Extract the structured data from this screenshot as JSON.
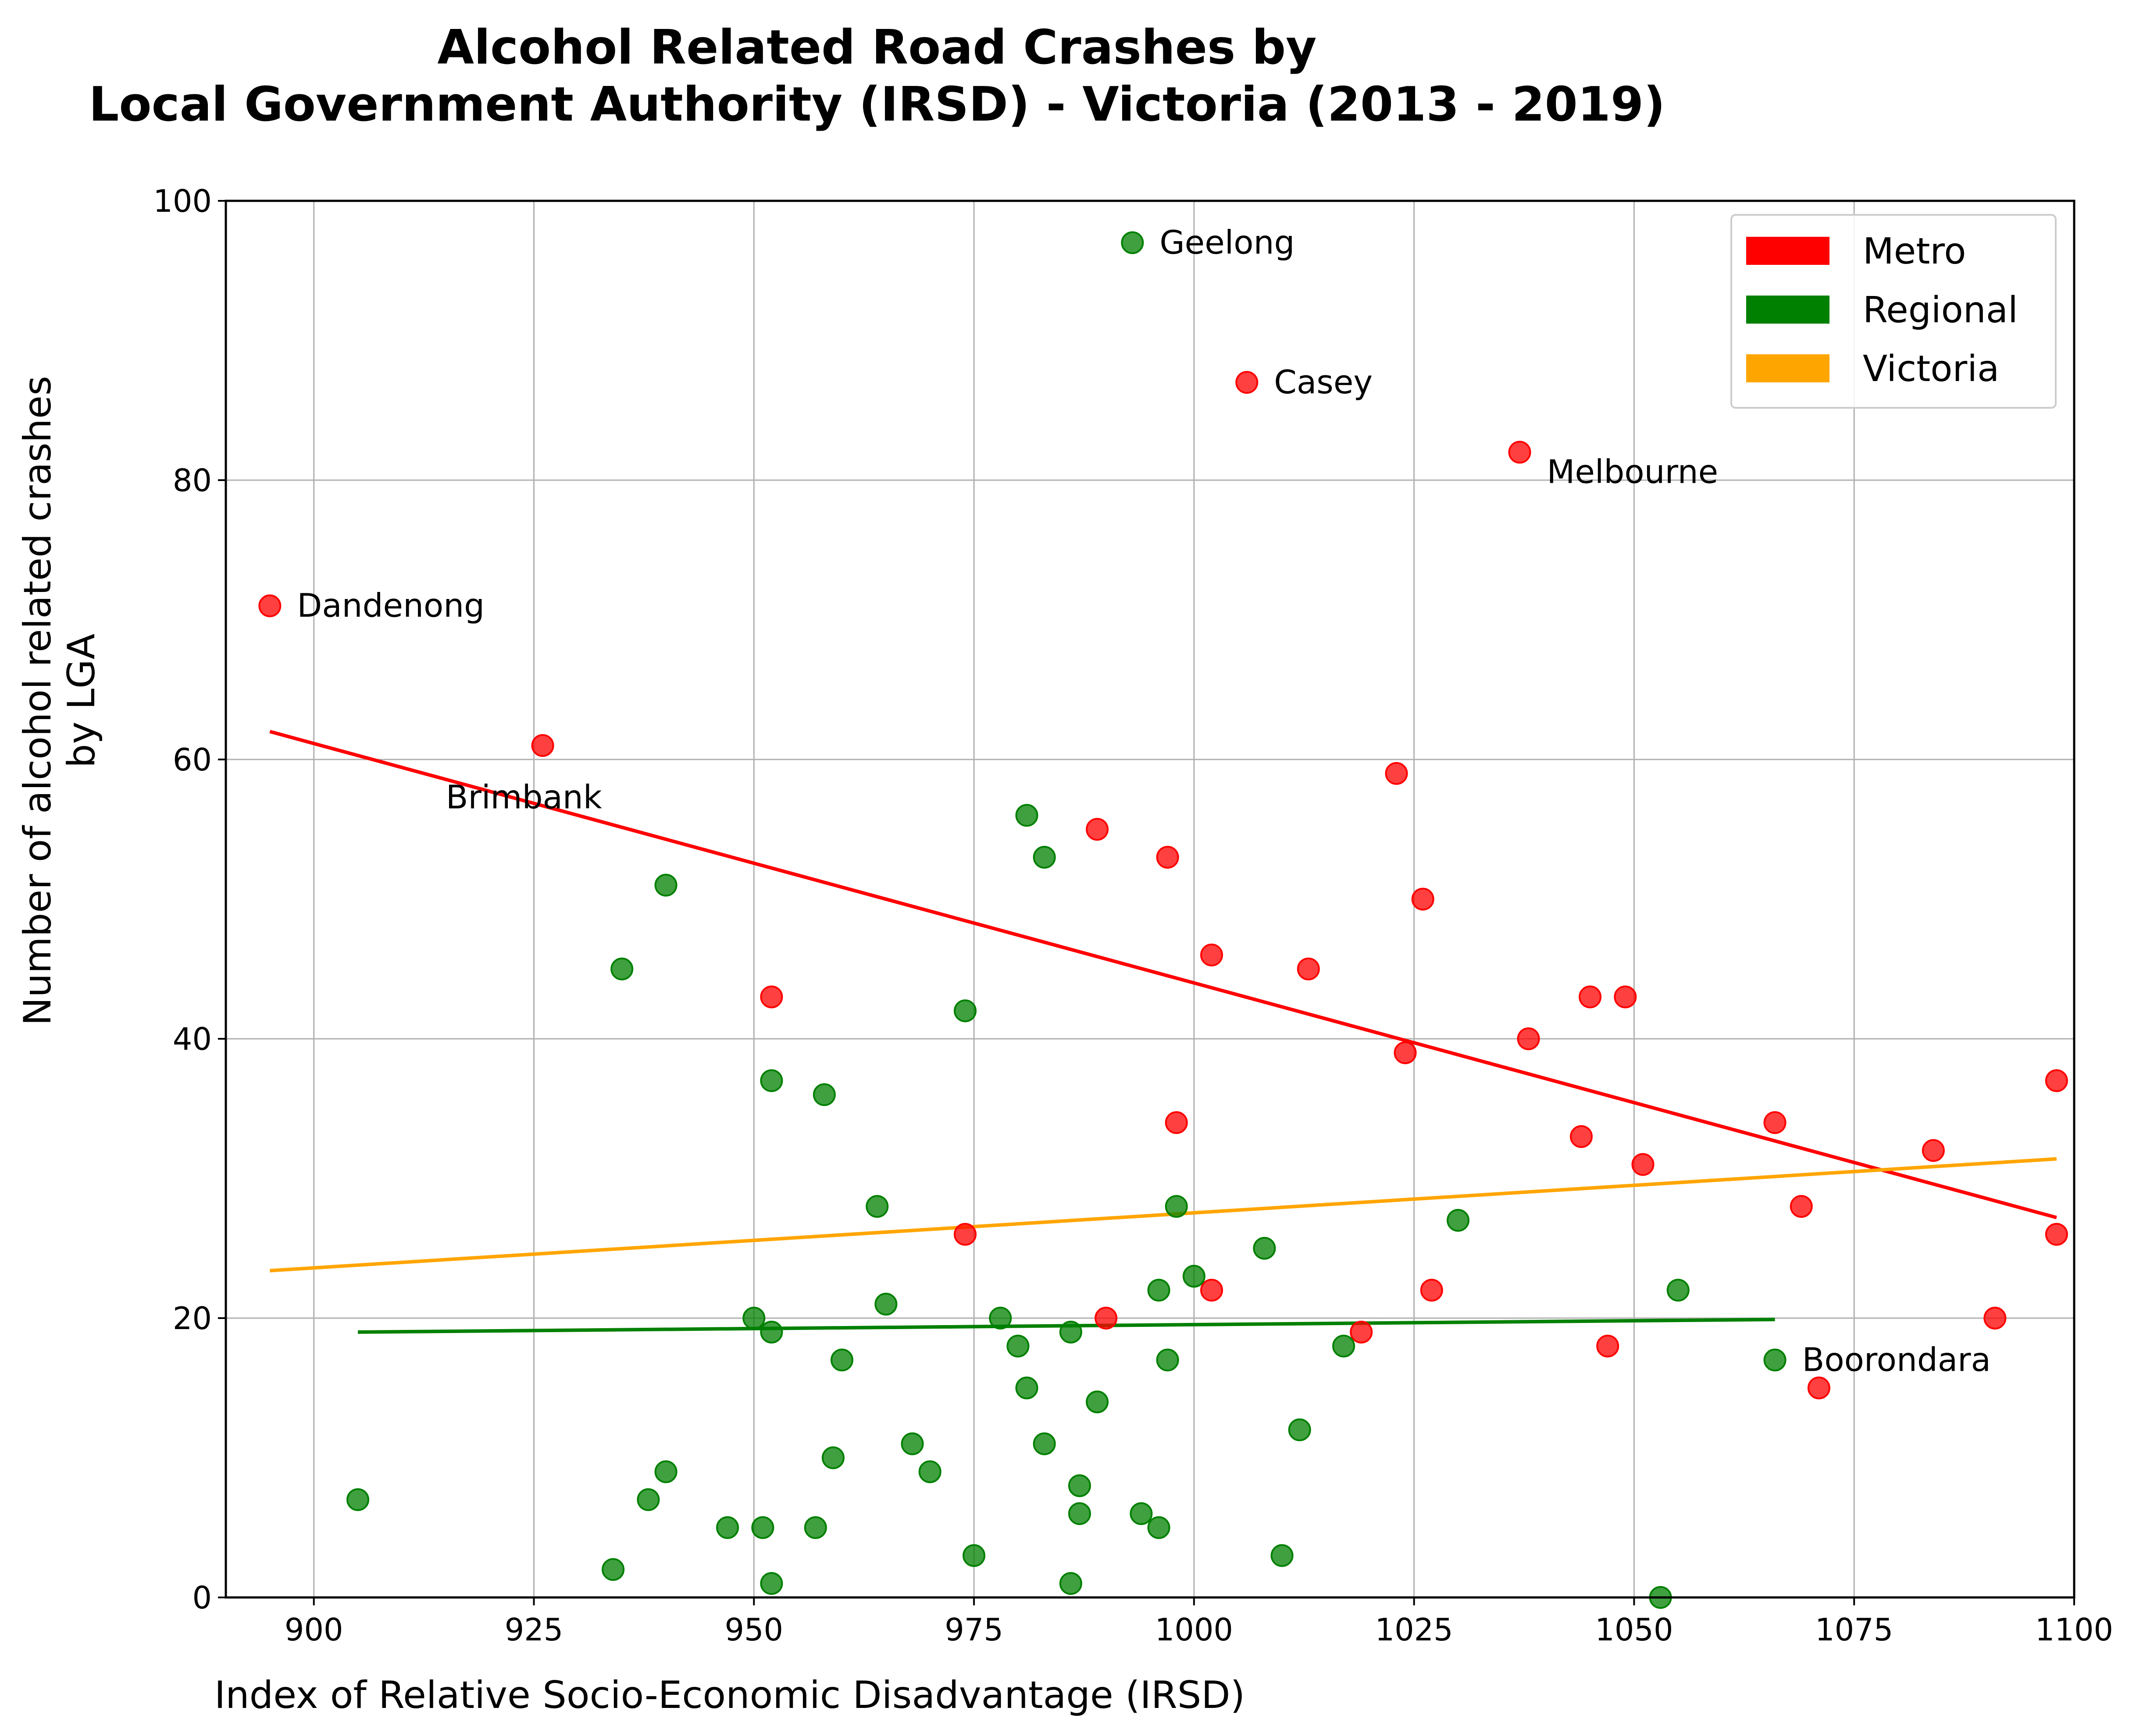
{
  "chart_data": {
    "type": "scatter",
    "title": [
      "Alcohol Related Road Crashes by",
      "Local Government Authority (IRSD) - Victoria (2013 - 2019)"
    ],
    "xlabel": "Index of Relative Socio-Economic Disadvantage (IRSD)",
    "ylabel": [
      "Number of alcohol related crashes",
      "by LGA"
    ],
    "xlim": [
      890,
      1100
    ],
    "ylim": [
      0,
      100
    ],
    "xticks": [
      900,
      925,
      950,
      975,
      1000,
      1025,
      1050,
      1075,
      1100
    ],
    "yticks": [
      0,
      20,
      40,
      60,
      80,
      100
    ],
    "grid": true,
    "legend_position": "top-right",
    "series": [
      {
        "name": "Metro",
        "color": "#ff0000",
        "points": [
          [
            895,
            71
          ],
          [
            926,
            61
          ],
          [
            952,
            43
          ],
          [
            974,
            26
          ],
          [
            989,
            55
          ],
          [
            990,
            20
          ],
          [
            997,
            53
          ],
          [
            998,
            34
          ],
          [
            1002,
            46
          ],
          [
            1002,
            22
          ],
          [
            1006,
            87
          ],
          [
            1013,
            45
          ],
          [
            1019,
            19
          ],
          [
            1023,
            59
          ],
          [
            1024,
            39
          ],
          [
            1026,
            50
          ],
          [
            1027,
            22
          ],
          [
            1037,
            82
          ],
          [
            1038,
            40
          ],
          [
            1044,
            33
          ],
          [
            1045,
            43
          ],
          [
            1047,
            18
          ],
          [
            1049,
            43
          ],
          [
            1051,
            31
          ],
          [
            1066,
            34
          ],
          [
            1069,
            28
          ],
          [
            1071,
            15
          ],
          [
            1084,
            32
          ],
          [
            1091,
            20
          ],
          [
            1098,
            37
          ],
          [
            1098,
            26
          ]
        ]
      },
      {
        "name": "Regional",
        "color": "#008000",
        "points": [
          [
            905,
            7
          ],
          [
            934,
            2
          ],
          [
            935,
            45
          ],
          [
            938,
            7
          ],
          [
            940,
            51
          ],
          [
            940,
            9
          ],
          [
            947,
            5
          ],
          [
            950,
            20
          ],
          [
            951,
            5
          ],
          [
            952,
            37
          ],
          [
            952,
            19
          ],
          [
            952,
            1
          ],
          [
            957,
            5
          ],
          [
            958,
            36
          ],
          [
            959,
            10
          ],
          [
            960,
            17
          ],
          [
            964,
            28
          ],
          [
            965,
            21
          ],
          [
            968,
            11
          ],
          [
            970,
            9
          ],
          [
            974,
            42
          ],
          [
            975,
            3
          ],
          [
            978,
            20
          ],
          [
            980,
            18
          ],
          [
            981,
            56
          ],
          [
            981,
            15
          ],
          [
            983,
            53
          ],
          [
            983,
            11
          ],
          [
            986,
            19
          ],
          [
            986,
            1
          ],
          [
            987,
            8
          ],
          [
            987,
            6
          ],
          [
            989,
            14
          ],
          [
            993,
            97
          ],
          [
            994,
            6
          ],
          [
            996,
            22
          ],
          [
            996,
            5
          ],
          [
            997,
            17
          ],
          [
            998,
            28
          ],
          [
            1000,
            23
          ],
          [
            1008,
            25
          ],
          [
            1010,
            3
          ],
          [
            1012,
            12
          ],
          [
            1017,
            18
          ],
          [
            1030,
            27
          ],
          [
            1053,
            0
          ],
          [
            1055,
            22
          ],
          [
            1066,
            17
          ]
        ]
      }
    ],
    "trendlines": [
      {
        "series": "Metro",
        "color": "#ff0000",
        "x": [
          895,
          1098
        ],
        "y": [
          62,
          27.2
        ]
      },
      {
        "series": "Regional",
        "color": "#008000",
        "x": [
          905,
          1066
        ],
        "y": [
          19,
          19.9
        ]
      },
      {
        "series": "Victoria",
        "color": "#ffa500",
        "x": [
          895,
          1098
        ],
        "y": [
          23.4,
          31.4
        ]
      }
    ],
    "legend": [
      {
        "label": "Metro",
        "color": "#ff0000"
      },
      {
        "label": "Regional",
        "color": "#008000"
      },
      {
        "label": "Victoria",
        "color": "#ffa500"
      }
    ],
    "annotations": [
      {
        "text": "Geelong",
        "x": 993,
        "y": 97
      },
      {
        "text": "Casey",
        "x": 1006,
        "y": 87
      },
      {
        "text": "Melbourne",
        "x": 1037,
        "y": 82
      },
      {
        "text": "Dandenong",
        "x": 895,
        "y": 71
      },
      {
        "text": "Brimbank",
        "x": 926,
        "y": 61
      },
      {
        "text": "Boorondara",
        "x": 1066,
        "y": 17
      }
    ]
  }
}
